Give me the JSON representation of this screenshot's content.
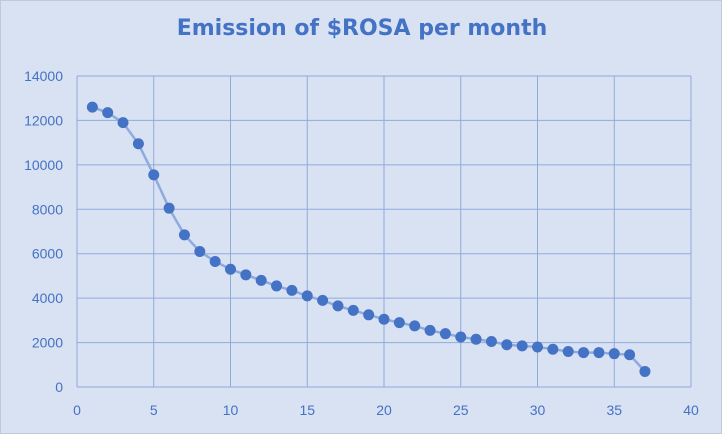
{
  "chart_data": {
    "type": "line",
    "title": "Emission of $ROSA per month",
    "xlabel": "",
    "ylabel": "",
    "xlim": [
      0,
      40
    ],
    "ylim": [
      0,
      14000
    ],
    "x_ticks": [
      0,
      5,
      10,
      15,
      20,
      25,
      30,
      35,
      40
    ],
    "y_ticks": [
      0,
      2000,
      4000,
      6000,
      8000,
      10000,
      12000,
      14000
    ],
    "grid": true,
    "legend": "none",
    "colors": {
      "line": "#8faadc",
      "marker": "#4472c4",
      "text": "#4472c4",
      "grid": "#8faadc",
      "background": "#d9e2f3"
    },
    "series": [
      {
        "x": [
          1,
          2,
          3,
          4,
          5,
          6,
          7,
          8,
          9,
          10,
          11,
          12,
          13,
          14,
          15,
          16,
          17,
          18,
          19,
          20,
          21,
          22,
          23,
          24,
          25,
          26,
          27,
          28,
          29,
          30,
          31,
          32,
          33,
          34,
          35,
          36,
          37
        ],
        "y": [
          12600,
          12350,
          11900,
          10950,
          9550,
          8050,
          6850,
          6100,
          5650,
          5300,
          5050,
          4800,
          4550,
          4350,
          4100,
          3900,
          3650,
          3450,
          3250,
          3050,
          2900,
          2750,
          2550,
          2400,
          2250,
          2150,
          2050,
          1900,
          1850,
          1800,
          1700,
          1600,
          1550,
          1550,
          1500,
          1450,
          700
        ]
      }
    ]
  }
}
